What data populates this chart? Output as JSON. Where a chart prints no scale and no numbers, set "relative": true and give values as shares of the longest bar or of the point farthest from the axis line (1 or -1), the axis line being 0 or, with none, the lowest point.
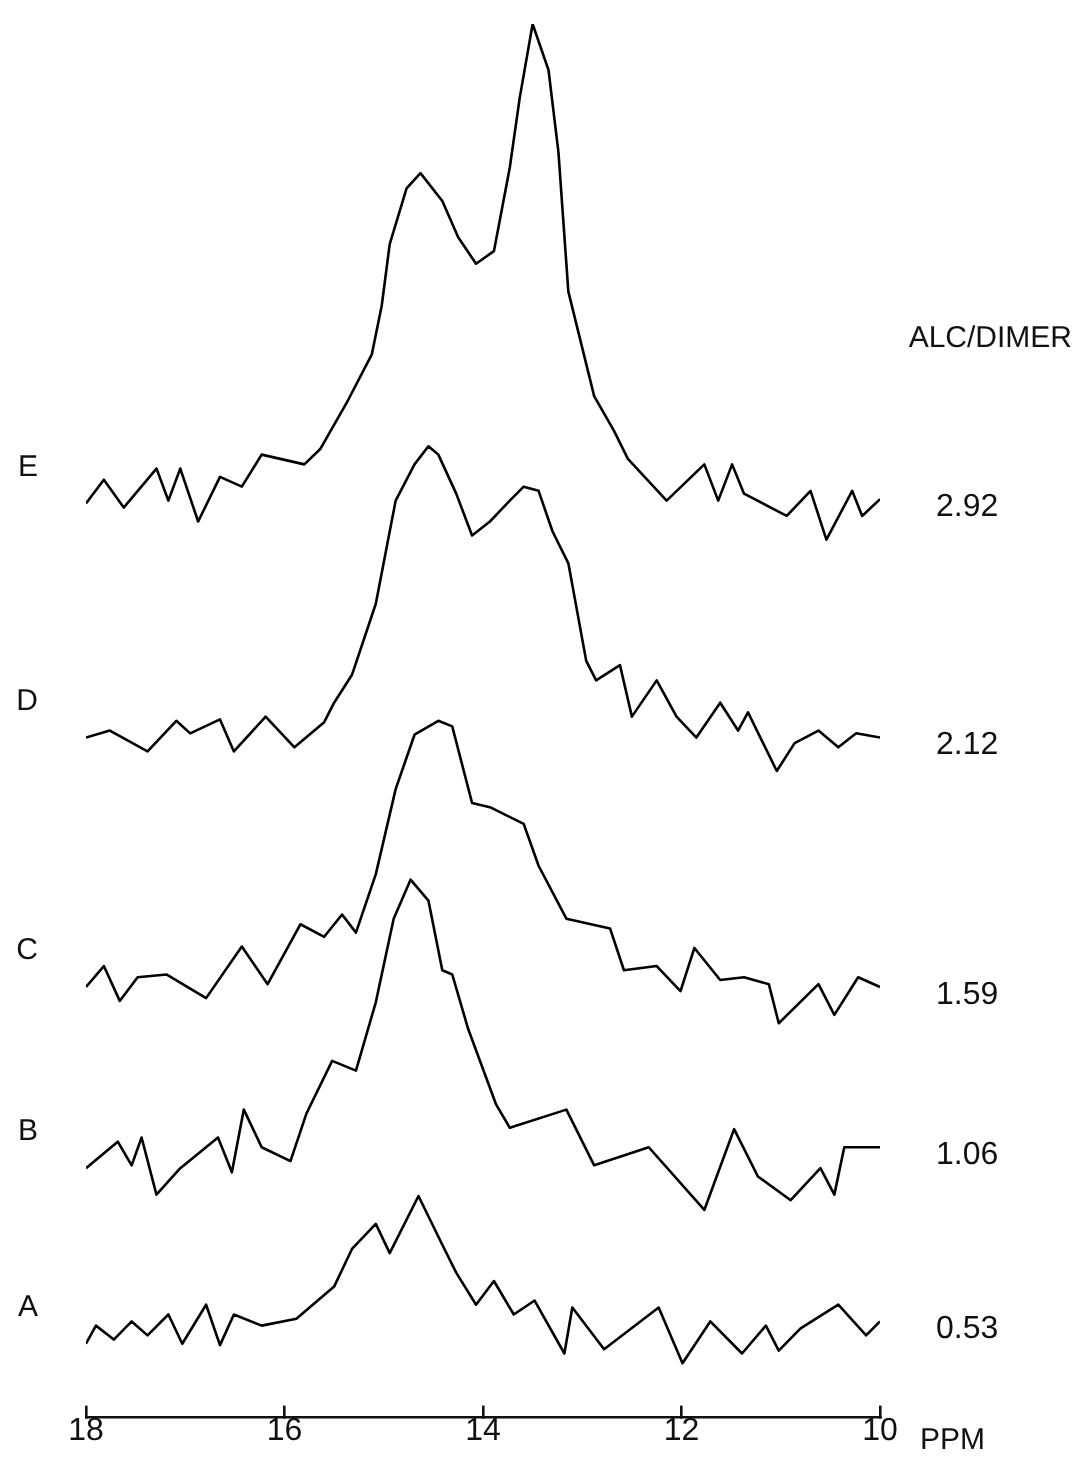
{
  "chart_data": {
    "type": "line",
    "relative": true,
    "xlabel": "PPM",
    "xlim": [
      18,
      10
    ],
    "xticks": [
      18,
      16,
      14,
      12,
      10
    ],
    "grid": false,
    "legend": false,
    "marker": "none",
    "line_style": "solid",
    "series": [
      {
        "name": "E",
        "color": "#000000",
        "x": [
          18.0,
          17.82,
          17.62,
          17.29,
          17.17,
          17.05,
          16.87,
          16.65,
          16.43,
          16.23,
          15.8,
          15.64,
          15.36,
          15.12,
          15.02,
          14.94,
          14.77,
          14.63,
          14.41,
          14.25,
          14.07,
          13.89,
          13.73,
          13.63,
          13.5,
          13.34,
          13.24,
          13.14,
          12.88,
          12.68,
          12.54,
          12.15,
          11.77,
          11.63,
          11.49,
          11.37,
          10.94,
          10.7,
          10.54,
          10.28,
          10.18,
          10.0
        ],
        "values": [
          0.656,
          0.673,
          0.653,
          0.681,
          0.658,
          0.681,
          0.643,
          0.675,
          0.668,
          0.691,
          0.684,
          0.695,
          0.73,
          0.763,
          0.798,
          0.842,
          0.882,
          0.893,
          0.873,
          0.847,
          0.828,
          0.837,
          0.897,
          0.947,
          1,
          0.967,
          0.908,
          0.808,
          0.733,
          0.708,
          0.688,
          0.658,
          0.684,
          0.658,
          0.684,
          0.663,
          0.647,
          0.665,
          0.63,
          0.665,
          0.647,
          0.659
        ]
      },
      {
        "name": "D",
        "color": "#000000",
        "x": [
          18.0,
          17.76,
          17.38,
          17.09,
          16.95,
          16.65,
          16.51,
          16.19,
          15.9,
          15.6,
          15.5,
          15.32,
          15.08,
          14.88,
          14.69,
          14.55,
          14.45,
          14.27,
          14.11,
          13.93,
          13.73,
          13.59,
          13.44,
          13.3,
          13.14,
          12.96,
          12.86,
          12.62,
          12.5,
          12.25,
          12.05,
          11.85,
          11.61,
          11.43,
          11.33,
          11.04,
          10.86,
          10.62,
          10.42,
          10.24,
          10.0
        ],
        "values": [
          0.488,
          0.493,
          0.478,
          0.5,
          0.491,
          0.501,
          0.478,
          0.503,
          0.481,
          0.499,
          0.513,
          0.533,
          0.584,
          0.658,
          0.684,
          0.697,
          0.691,
          0.663,
          0.633,
          0.643,
          0.658,
          0.668,
          0.665,
          0.636,
          0.613,
          0.543,
          0.529,
          0.54,
          0.503,
          0.529,
          0.503,
          0.488,
          0.513,
          0.493,
          0.506,
          0.464,
          0.484,
          0.493,
          0.481,
          0.491,
          0.488
        ]
      },
      {
        "name": "C",
        "color": "#000000",
        "x": [
          18.0,
          17.82,
          17.66,
          17.48,
          17.19,
          16.79,
          16.43,
          16.17,
          15.84,
          15.6,
          15.42,
          15.28,
          15.08,
          14.88,
          14.69,
          14.45,
          14.31,
          14.11,
          13.93,
          13.59,
          13.44,
          13.16,
          12.72,
          12.58,
          12.25,
          12.01,
          11.87,
          11.61,
          11.37,
          11.12,
          11.02,
          10.62,
          10.46,
          10.22,
          10.0
        ],
        "values": [
          0.309,
          0.324,
          0.299,
          0.316,
          0.318,
          0.301,
          0.338,
          0.311,
          0.354,
          0.345,
          0.361,
          0.348,
          0.39,
          0.451,
          0.49,
          0.5,
          0.496,
          0.441,
          0.438,
          0.426,
          0.396,
          0.358,
          0.351,
          0.321,
          0.324,
          0.306,
          0.337,
          0.314,
          0.316,
          0.311,
          0.283,
          0.311,
          0.289,
          0.316,
          0.309
        ]
      },
      {
        "name": "B",
        "color": "#000000",
        "x": [
          18.0,
          17.68,
          17.54,
          17.44,
          17.29,
          17.05,
          16.67,
          16.53,
          16.41,
          16.23,
          15.94,
          15.78,
          15.52,
          15.28,
          15.08,
          14.9,
          14.73,
          14.55,
          14.41,
          14.31,
          14.15,
          13.87,
          13.73,
          13.16,
          12.88,
          12.33,
          11.77,
          11.47,
          11.23,
          10.9,
          10.6,
          10.46,
          10.36,
          10.0
        ],
        "values": [
          0.179,
          0.198,
          0.181,
          0.201,
          0.16,
          0.179,
          0.201,
          0.176,
          0.221,
          0.194,
          0.184,
          0.218,
          0.256,
          0.249,
          0.298,
          0.358,
          0.386,
          0.371,
          0.321,
          0.318,
          0.279,
          0.225,
          0.208,
          0.221,
          0.181,
          0.194,
          0.149,
          0.207,
          0.173,
          0.156,
          0.179,
          0.16,
          0.194,
          0.194
        ]
      },
      {
        "name": "A",
        "color": "#000000",
        "x": [
          18.0,
          17.9,
          17.72,
          17.54,
          17.38,
          17.17,
          17.03,
          16.79,
          16.65,
          16.51,
          16.23,
          15.88,
          15.5,
          15.32,
          15.08,
          14.94,
          14.65,
          14.41,
          14.27,
          14.07,
          13.89,
          13.69,
          13.48,
          13.18,
          13.1,
          12.78,
          12.23,
          11.99,
          11.71,
          11.39,
          11.15,
          11.02,
          10.8,
          10.42,
          10.14,
          10.0
        ],
        "values": [
          0.053,
          0.066,
          0.056,
          0.069,
          0.059,
          0.074,
          0.053,
          0.081,
          0.052,
          0.074,
          0.066,
          0.071,
          0.094,
          0.121,
          0.139,
          0.118,
          0.159,
          0.124,
          0.104,
          0.081,
          0.098,
          0.074,
          0.084,
          0.046,
          0.079,
          0.049,
          0.079,
          0.039,
          0.069,
          0.046,
          0.066,
          0.048,
          0.064,
          0.081,
          0.059,
          0.069
        ]
      }
    ],
    "annotations": [
      "ALC/DIMER",
      "2.92",
      "2.12",
      "1.59",
      "1.06",
      "0.53"
    ]
  }
}
